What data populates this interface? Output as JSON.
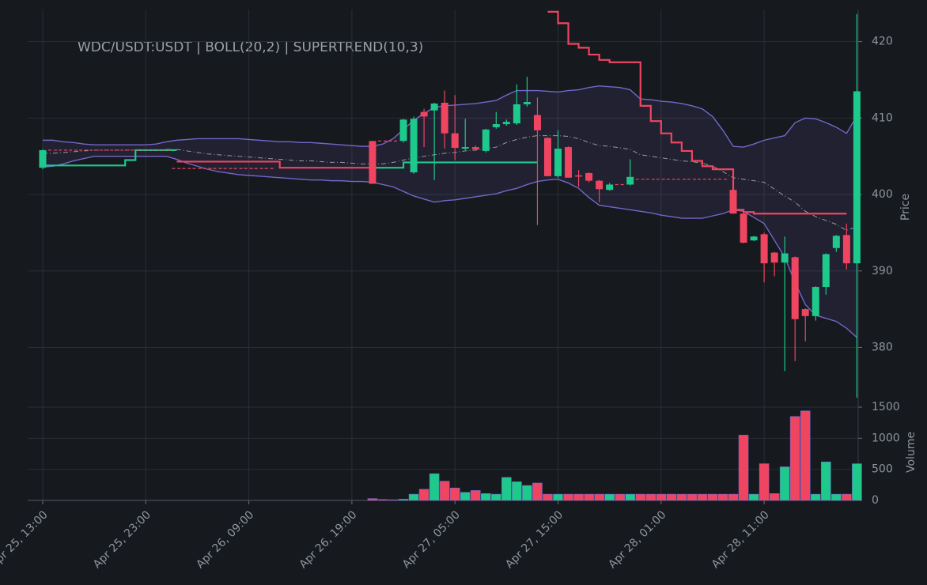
{
  "chart_data": {
    "type": "candlestick",
    "title": "WDC/USDT:USDT | BOLL(20,2) | SUPERTREND(10,3)",
    "ylabel": "Price",
    "y2label": "Volume",
    "categories": [
      "Apr 25, 13:00",
      null,
      null,
      null,
      null,
      null,
      null,
      null,
      null,
      null,
      "Apr 25, 23:00",
      null,
      null,
      null,
      null,
      null,
      null,
      null,
      null,
      null,
      "Apr 26, 09:00",
      null,
      null,
      null,
      null,
      null,
      null,
      null,
      null,
      null,
      "Apr 26, 19:00",
      null,
      null,
      null,
      null,
      null,
      null,
      null,
      null,
      null,
      "Apr 27, 05:00",
      null,
      null,
      null,
      null,
      null,
      null,
      null,
      null,
      null,
      "Apr 27, 15:00",
      null,
      null,
      null,
      null,
      null,
      null,
      null,
      null,
      null,
      "Apr 28, 01:00",
      null,
      null,
      null,
      null,
      null,
      null,
      null,
      null,
      null,
      "Apr 28, 11:00",
      null,
      null,
      null,
      null,
      null,
      null,
      null,
      null,
      null
    ],
    "open": [
      403.5,
      405.8,
      405.8,
      405.8,
      405.8,
      405.8,
      405.8,
      405.8,
      405.8,
      405.8,
      405.8,
      405.8,
      405.8,
      403.4,
      403.4,
      403.4,
      403.4,
      403.4,
      403.4,
      403.4,
      403.4,
      403.4,
      403.4,
      null,
      null,
      null,
      null,
      null,
      null,
      null,
      null,
      null,
      407,
      407,
      407,
      407,
      402.9,
      410.8,
      411,
      412,
      408,
      406,
      406.2,
      405.7,
      408.8,
      409.2,
      409.3,
      411.8,
      410.4,
      407.4,
      402.4,
      406.2,
      402.5,
      402.8,
      401.8,
      400.6,
      401.3,
      401.3,
      402,
      402,
      402,
      402,
      402,
      402,
      402,
      402,
      402,
      400.6,
      397.5,
      394,
      394.8,
      392.4,
      391.1,
      391.8,
      385,
      384.1,
      387.9,
      393,
      394.7,
      391
    ],
    "high": [
      405.9,
      405.8,
      405.8,
      405.8,
      405.8,
      405.8,
      405.8,
      405.8,
      405.8,
      405.8,
      405.8,
      405.8,
      405.8,
      403.4,
      403.4,
      403.4,
      403.4,
      403.4,
      403.4,
      403.4,
      403.4,
      403.4,
      403.4,
      null,
      null,
      null,
      null,
      null,
      null,
      null,
      null,
      null,
      407,
      407,
      407,
      409.9,
      410.2,
      411.2,
      412,
      413.6,
      413,
      409.9,
      406.4,
      408.6,
      410.8,
      409.8,
      414.4,
      415.4,
      412.7,
      407.5,
      408.4,
      406.3,
      403.2,
      402.9,
      401.9,
      401.5,
      401.3,
      404.6,
      402,
      402,
      402,
      402,
      402,
      402,
      402,
      402,
      402,
      400.7,
      397.6,
      394.6,
      395,
      392.5,
      394.5,
      391.9,
      385.1,
      388,
      392.3,
      394.7,
      396.2,
      423.6
    ],
    "low": [
      403.3,
      405.8,
      405.8,
      405.8,
      405.8,
      405.8,
      405.8,
      405.8,
      405.8,
      405.8,
      405.8,
      405.8,
      405.8,
      403.4,
      403.4,
      403.4,
      403.4,
      403.4,
      403.4,
      403.4,
      403.4,
      403.4,
      403.4,
      null,
      null,
      null,
      null,
      null,
      null,
      null,
      null,
      null,
      401.4,
      407,
      407,
      406.8,
      402.7,
      406.2,
      401.9,
      406,
      404.5,
      405.8,
      405.8,
      405.5,
      408.6,
      409,
      409.1,
      411.5,
      396,
      402.4,
      402.2,
      402.2,
      401,
      401.6,
      399,
      400.5,
      401.3,
      401.2,
      402,
      402,
      402,
      402,
      402,
      402,
      402,
      402,
      402,
      397.5,
      393.6,
      393.9,
      388.5,
      389.3,
      376.9,
      378.2,
      380.8,
      383.5,
      386.9,
      392.5,
      390.2,
      373.4
    ],
    "close": [
      405.8,
      405.8,
      405.8,
      405.8,
      405.8,
      405.8,
      405.8,
      405.8,
      405.8,
      405.8,
      405.8,
      405.8,
      405.8,
      403.4,
      403.4,
      403.4,
      403.4,
      403.4,
      403.4,
      403.4,
      403.4,
      403.4,
      403.4,
      null,
      null,
      null,
      null,
      null,
      null,
      null,
      null,
      null,
      401.4,
      407,
      407,
      409.8,
      409.9,
      410.2,
      411.9,
      408,
      406.1,
      406.2,
      405.9,
      408.5,
      409.2,
      409.5,
      411.8,
      412.1,
      408.4,
      402.4,
      406,
      402.2,
      402.4,
      401.8,
      400.7,
      401.3,
      401.3,
      402.3,
      402,
      402,
      402,
      402,
      402,
      402,
      402,
      402,
      402,
      397.5,
      393.7,
      394.5,
      391,
      391.1,
      392.3,
      383.7,
      384.1,
      387.9,
      392.2,
      394.6,
      391,
      413.5
    ],
    "volume": [
      null,
      null,
      null,
      null,
      null,
      null,
      null,
      null,
      null,
      null,
      null,
      null,
      null,
      null,
      null,
      null,
      null,
      null,
      null,
      null,
      null,
      null,
      null,
      null,
      null,
      null,
      null,
      null,
      null,
      null,
      null,
      null,
      30,
      15,
      10,
      20,
      100,
      180,
      430,
      310,
      200,
      130,
      160,
      110,
      100,
      370,
      300,
      240,
      280,
      100,
      100,
      100,
      100,
      100,
      100,
      100,
      100,
      100,
      100,
      100,
      100,
      100,
      100,
      100,
      100,
      100,
      100,
      100,
      1050,
      100,
      590,
      110,
      540,
      1350,
      1440,
      100,
      620,
      100,
      100,
      590
    ],
    "band_upper": [
      407.1,
      407.1,
      406.9,
      406.8,
      406.6,
      406.5,
      406.5,
      406.5,
      406.5,
      406.5,
      406.5,
      406.6,
      406.9,
      407.1,
      407.2,
      407.3,
      407.3,
      407.3,
      407.3,
      407.3,
      407.2,
      407.1,
      407.0,
      406.9,
      406.9,
      406.8,
      406.8,
      406.7,
      406.6,
      406.5,
      406.4,
      406.3,
      406.3,
      406.6,
      407.3,
      408.5,
      409.7,
      410.6,
      411.4,
      411.6,
      411.7,
      411.8,
      411.9,
      412.1,
      412.3,
      413.0,
      413.6,
      413.6,
      413.6,
      413.5,
      413.4,
      413.6,
      413.7,
      414.0,
      414.2,
      414.1,
      414.0,
      413.7,
      412.5,
      412.4,
      412.2,
      412.1,
      411.9,
      411.6,
      411.2,
      410.2,
      408.4,
      406.3,
      406.2,
      406.6,
      407.1,
      407.4,
      407.7,
      409.4,
      410.0,
      409.9,
      409.4,
      408.8,
      408.0,
      410.3
    ],
    "band_middle": [
      405.4,
      405.4,
      405.5,
      405.6,
      405.7,
      405.8,
      405.8,
      405.8,
      405.8,
      405.8,
      405.8,
      405.8,
      405.9,
      405.9,
      405.7,
      405.5,
      405.3,
      405.2,
      405.1,
      405.0,
      404.9,
      404.8,
      404.7,
      404.6,
      404.5,
      404.4,
      404.4,
      404.3,
      404.2,
      404.2,
      404.1,
      404.0,
      404.0,
      404.0,
      404.2,
      404.5,
      404.8,
      405.0,
      405.2,
      405.4,
      405.5,
      405.7,
      405.8,
      406.0,
      406.2,
      406.8,
      407.2,
      407.5,
      407.7,
      407.7,
      407.7,
      407.6,
      407.3,
      406.8,
      406.4,
      406.3,
      406.1,
      405.9,
      405.2,
      405.0,
      404.8,
      404.6,
      404.4,
      404.3,
      404.1,
      403.7,
      403.0,
      402.2,
      402.0,
      401.8,
      401.6,
      400.7,
      399.8,
      399.0,
      397.8,
      397.1,
      396.6,
      396.1,
      395.3,
      395.8
    ],
    "band_lower": [
      403.6,
      403.7,
      404.0,
      404.4,
      404.7,
      405.0,
      405.0,
      405.0,
      405.0,
      405.0,
      405.0,
      405.0,
      405.0,
      404.6,
      404.1,
      403.7,
      403.3,
      403.0,
      402.8,
      402.6,
      402.5,
      402.4,
      402.3,
      402.2,
      402.1,
      402.0,
      401.9,
      401.9,
      401.8,
      401.8,
      401.7,
      401.7,
      401.6,
      401.3,
      401.0,
      400.4,
      399.8,
      399.4,
      399.0,
      399.2,
      399.3,
      399.5,
      399.7,
      399.9,
      400.1,
      400.5,
      400.8,
      401.3,
      401.7,
      401.9,
      402.0,
      401.5,
      400.8,
      399.6,
      398.6,
      398.4,
      398.2,
      398.0,
      397.8,
      397.6,
      397.3,
      397.1,
      396.9,
      396.9,
      396.9,
      397.2,
      397.5,
      398.0,
      397.8,
      397.0,
      396.2,
      394.0,
      391.8,
      388.5,
      385.6,
      384.2,
      383.8,
      383.4,
      382.5,
      381.3
    ],
    "supertrend_up": [
      403.8,
      403.8,
      403.8,
      403.8,
      403.8,
      403.8,
      403.8,
      403.8,
      404.5,
      405.8,
      405.8,
      405.8,
      405.8,
      405.8,
      null,
      null,
      null,
      null,
      null,
      null,
      null,
      null,
      null,
      null,
      null,
      null,
      null,
      null,
      null,
      null,
      null,
      null,
      403.5,
      403.5,
      403.5,
      404.2,
      404.2,
      404.2,
      404.2,
      404.2,
      404.2,
      404.2,
      404.2,
      404.2,
      404.2,
      404.2,
      404.2,
      404.2,
      404.2,
      null,
      null,
      null,
      null,
      null,
      null,
      null,
      null,
      null,
      null,
      null,
      null,
      null,
      null,
      null,
      null,
      null,
      null,
      null,
      null,
      null,
      null,
      null,
      null,
      null,
      null,
      null,
      null,
      null,
      null,
      null
    ],
    "supertrend_down": [
      null,
      null,
      null,
      null,
      null,
      null,
      null,
      null,
      null,
      null,
      null,
      null,
      null,
      404.3,
      404.3,
      404.3,
      404.3,
      404.3,
      404.3,
      404.3,
      404.3,
      404.3,
      404.3,
      403.5,
      403.5,
      403.5,
      403.5,
      403.5,
      403.5,
      403.5,
      403.5,
      403.5,
      403.5,
      null,
      null,
      null,
      null,
      null,
      null,
      null,
      null,
      null,
      null,
      null,
      null,
      null,
      null,
      null,
      null,
      423.9,
      422.4,
      419.7,
      419.2,
      418.3,
      417.6,
      417.3,
      417.3,
      417.3,
      411.6,
      409.6,
      408,
      406.8,
      405.7,
      404.4,
      403.7,
      403.3,
      403.3,
      398,
      397.7,
      397.5,
      397.5,
      397.5,
      397.5,
      397.5,
      397.5,
      397.5,
      397.5,
      397.5,
      397.5,
      null
    ],
    "up_color": "#1ec98c",
    "down_color": "#ef4560",
    "band_color": "#7566c9",
    "ylim": [
      372.5,
      424.2
    ],
    "yticks": [
      380,
      390,
      400,
      410,
      420
    ],
    "y2lim": [
      0,
      1500
    ],
    "y2ticks": [
      0,
      500,
      1000,
      1500
    ],
    "grid": true
  }
}
